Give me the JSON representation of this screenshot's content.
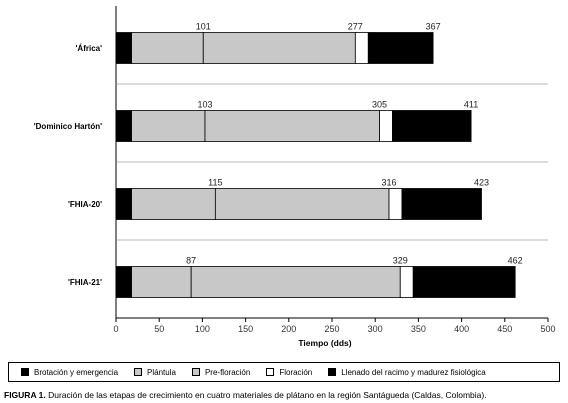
{
  "chart_data": {
    "type": "bar",
    "orientation": "horizontal",
    "stacked": true,
    "categories": [
      "'África'",
      "'Dominico Hartón'",
      "'FHIA-20'",
      "'FHIA-21'"
    ],
    "series": [
      {
        "name": "Brotación y emergencia",
        "color": "#000000",
        "values": [
          18,
          18,
          18,
          18
        ]
      },
      {
        "name": "Plántula",
        "color": "#c8c8c8",
        "values": [
          83,
          85,
          97,
          69
        ]
      },
      {
        "name": "Pre-floración",
        "color": "#c8c8c8",
        "values": [
          176,
          202,
          201,
          242
        ]
      },
      {
        "name": "Floración",
        "color": "#ffffff",
        "values": [
          15,
          15,
          15,
          15
        ]
      },
      {
        "name": "Llenado del racimo y madurez fisiológica",
        "color": "#000000",
        "values": [
          75,
          91,
          92,
          118
        ]
      }
    ],
    "data_labels": [
      [
        "101",
        "277",
        "367"
      ],
      [
        "103",
        "305",
        "411"
      ],
      [
        "115",
        "316",
        "423"
      ],
      [
        "87",
        "329",
        "462"
      ]
    ],
    "label_values": [
      [
        101,
        277,
        367
      ],
      [
        103,
        305,
        411
      ],
      [
        115,
        316,
        423
      ],
      [
        87,
        329,
        462
      ]
    ],
    "xlabel": "Tiempo (dds)",
    "xlim": [
      0,
      500
    ],
    "xticks": [
      "0",
      "50",
      "100",
      "150",
      "200",
      "250",
      "300",
      "350",
      "400",
      "450",
      "500"
    ],
    "grid": "horizontal separators",
    "legend_position": "bottom"
  },
  "legend": {
    "items": [
      {
        "label": "Brotación y emergencia",
        "color": "#000000"
      },
      {
        "label": "Plántula",
        "color": "#c8c8c8"
      },
      {
        "label": "Pre-floración",
        "color": "#c8c8c8"
      },
      {
        "label": "Floración",
        "color": "#ffffff"
      },
      {
        "label": "Llenado del racimo y madurez fisiológica",
        "color": "#000000"
      }
    ]
  },
  "caption": {
    "prefix": "FIGURA 1.",
    "text": "Duración de las etapas de crecimiento en cuatro materiales de plátano en la región Santágueda (Caldas, Colombia)."
  }
}
